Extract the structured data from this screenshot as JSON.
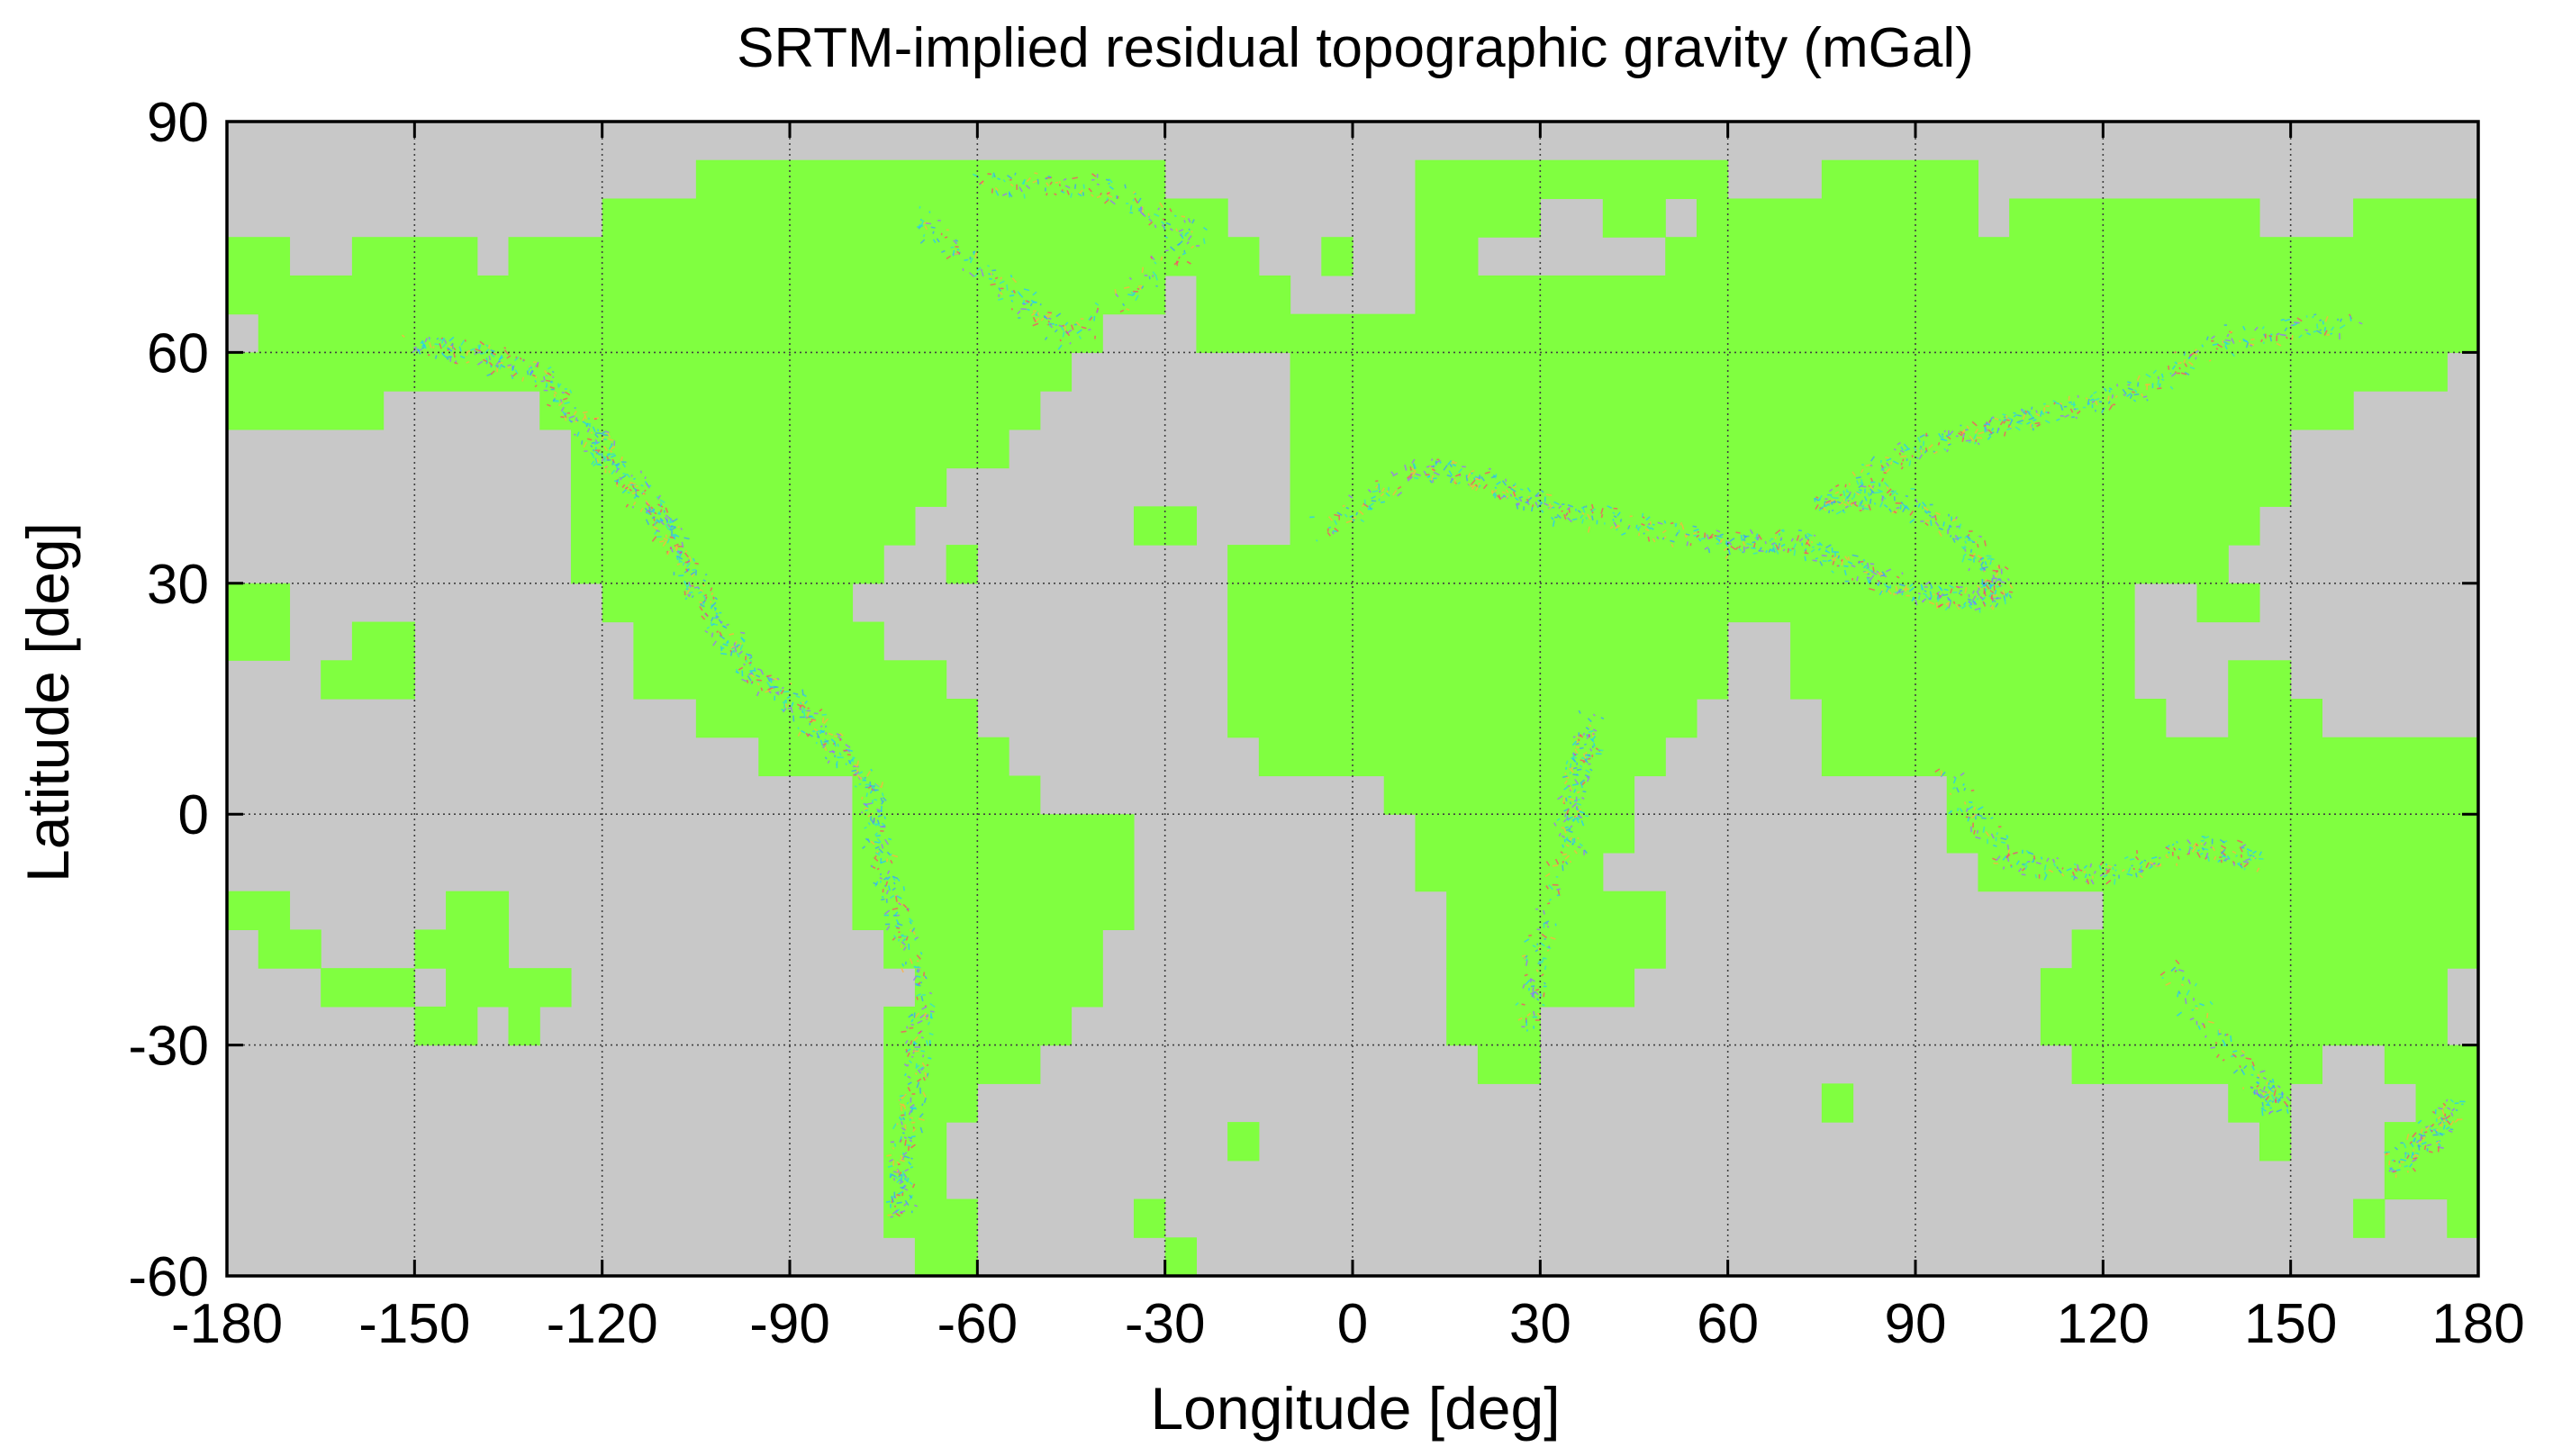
{
  "chart_data": {
    "type": "heatmap",
    "title": "SRTM-implied residual topographic gravity (mGal)",
    "xlabel": "Longitude [deg]",
    "ylabel": "Latitude [deg]",
    "xlim": [
      -180,
      180
    ],
    "ylim": [
      -60,
      90
    ],
    "xticks": [
      -180,
      -150,
      -120,
      -90,
      -60,
      -30,
      0,
      30,
      60,
      90,
      120,
      150,
      180
    ],
    "yticks": [
      -60,
      -30,
      0,
      30,
      60,
      90
    ],
    "xtick_labels": [
      "-180",
      "-150",
      "-120",
      "-90",
      "-60",
      "-30",
      "0",
      "30",
      "60",
      "90",
      "120",
      "150",
      "180"
    ],
    "ytick_labels": [
      "-60",
      "-30",
      "0",
      "30",
      "60",
      "90"
    ],
    "grid": true,
    "tile_size_deg": 5,
    "colors": {
      "no_data": "#c8c8c8",
      "near_zero": "#80ff40",
      "anomaly_palette": [
        "#3aa0ff",
        "#ff4a6a",
        "#22c8ff",
        "#9a6cff",
        "#ffb040",
        "#30e0d0"
      ]
    },
    "land_tiles_by_latitude_band": [
      {
        "lat": [
          85,
          90
        ],
        "lon_ranges": []
      },
      {
        "lat": [
          80,
          85
        ],
        "lon_ranges": [
          [
            -105,
            -30
          ],
          [
            10,
            60
          ],
          [
            75,
            100
          ]
        ]
      },
      {
        "lat": [
          75,
          80
        ],
        "lon_ranges": [
          [
            -120,
            -20
          ],
          [
            10,
            30
          ],
          [
            40,
            50
          ],
          [
            55,
            100
          ],
          [
            105,
            145
          ],
          [
            160,
            180
          ]
        ]
      },
      {
        "lat": [
          70,
          75
        ],
        "lon_ranges": [
          [
            -180,
            -170
          ],
          [
            -160,
            -140
          ],
          [
            -135,
            -15
          ],
          [
            -5,
            0
          ],
          [
            10,
            20
          ],
          [
            50,
            180
          ]
        ]
      },
      {
        "lat": [
          65,
          70
        ],
        "lon_ranges": [
          [
            -180,
            -30
          ],
          [
            -25,
            -10
          ],
          [
            10,
            180
          ]
        ]
      },
      {
        "lat": [
          60,
          65
        ],
        "lon_ranges": [
          [
            -175,
            -40
          ],
          [
            -25,
            180
          ]
        ]
      },
      {
        "lat": [
          55,
          60
        ],
        "lon_ranges": [
          [
            -180,
            -45
          ],
          [
            -10,
            175
          ]
        ]
      },
      {
        "lat": [
          50,
          55
        ],
        "lon_ranges": [
          [
            -180,
            -155
          ],
          [
            -130,
            -50
          ],
          [
            -10,
            160
          ]
        ]
      },
      {
        "lat": [
          45,
          50
        ],
        "lon_ranges": [
          [
            -125,
            -55
          ],
          [
            -10,
            150
          ]
        ]
      },
      {
        "lat": [
          40,
          45
        ],
        "lon_ranges": [
          [
            -125,
            -65
          ],
          [
            -10,
            150
          ]
        ]
      },
      {
        "lat": [
          35,
          40
        ],
        "lon_ranges": [
          [
            -125,
            -70
          ],
          [
            -35,
            -25
          ],
          [
            -10,
            145
          ]
        ]
      },
      {
        "lat": [
          30,
          35
        ],
        "lon_ranges": [
          [
            -125,
            -75
          ],
          [
            -65,
            -60
          ],
          [
            -20,
            140
          ]
        ]
      },
      {
        "lat": [
          25,
          30
        ],
        "lon_ranges": [
          [
            -180,
            -170
          ],
          [
            -120,
            -80
          ],
          [
            -20,
            125
          ],
          [
            135,
            145
          ]
        ]
      },
      {
        "lat": [
          20,
          25
        ],
        "lon_ranges": [
          [
            -180,
            -170
          ],
          [
            -160,
            -150
          ],
          [
            -115,
            -75
          ],
          [
            -20,
            60
          ],
          [
            70,
            125
          ]
        ]
      },
      {
        "lat": [
          15,
          20
        ],
        "lon_ranges": [
          [
            -165,
            -150
          ],
          [
            -115,
            -65
          ],
          [
            -20,
            60
          ],
          [
            70,
            125
          ],
          [
            140,
            150
          ]
        ]
      },
      {
        "lat": [
          10,
          15
        ],
        "lon_ranges": [
          [
            -105,
            -60
          ],
          [
            -20,
            55
          ],
          [
            75,
            130
          ],
          [
            140,
            155
          ]
        ]
      },
      {
        "lat": [
          5,
          10
        ],
        "lon_ranges": [
          [
            -95,
            -55
          ],
          [
            -15,
            50
          ],
          [
            75,
            180
          ]
        ]
      },
      {
        "lat": [
          0,
          5
        ],
        "lon_ranges": [
          [
            -80,
            -50
          ],
          [
            5,
            45
          ],
          [
            95,
            180
          ]
        ]
      },
      {
        "lat": [
          -5,
          0
        ],
        "lon_ranges": [
          [
            -80,
            -35
          ],
          [
            10,
            45
          ],
          [
            95,
            180
          ]
        ]
      },
      {
        "lat": [
          -10,
          -5
        ],
        "lon_ranges": [
          [
            -80,
            -35
          ],
          [
            10,
            40
          ],
          [
            100,
            180
          ]
        ]
      },
      {
        "lat": [
          -15,
          -10
        ],
        "lon_ranges": [
          [
            -180,
            -170
          ],
          [
            -145,
            -135
          ],
          [
            -80,
            -35
          ],
          [
            15,
            50
          ],
          [
            120,
            180
          ]
        ]
      },
      {
        "lat": [
          -20,
          -15
        ],
        "lon_ranges": [
          [
            -175,
            -165
          ],
          [
            -150,
            -135
          ],
          [
            -75,
            -40
          ],
          [
            15,
            50
          ],
          [
            115,
            180
          ]
        ]
      },
      {
        "lat": [
          -25,
          -20
        ],
        "lon_ranges": [
          [
            -165,
            -150
          ],
          [
            -145,
            -125
          ],
          [
            -70,
            -40
          ],
          [
            15,
            45
          ],
          [
            110,
            175
          ]
        ]
      },
      {
        "lat": [
          -30,
          -25
        ],
        "lon_ranges": [
          [
            -150,
            -140
          ],
          [
            -135,
            -130
          ],
          [
            -75,
            -45
          ],
          [
            15,
            30
          ],
          [
            110,
            175
          ]
        ]
      },
      {
        "lat": [
          -35,
          -30
        ],
        "lon_ranges": [
          [
            -75,
            -50
          ],
          [
            20,
            30
          ],
          [
            115,
            155
          ],
          [
            165,
            180
          ]
        ]
      },
      {
        "lat": [
          -40,
          -35
        ],
        "lon_ranges": [
          [
            -75,
            -60
          ],
          [
            75,
            80
          ],
          [
            140,
            150
          ],
          [
            170,
            180
          ]
        ]
      },
      {
        "lat": [
          -45,
          -40
        ],
        "lon_ranges": [
          [
            -75,
            -65
          ],
          [
            -20,
            -15
          ],
          [
            145,
            150
          ],
          [
            165,
            180
          ]
        ]
      },
      {
        "lat": [
          -50,
          -45
        ],
        "lon_ranges": [
          [
            -75,
            -65
          ],
          [
            165,
            180
          ]
        ]
      },
      {
        "lat": [
          -55,
          -50
        ],
        "lon_ranges": [
          [
            -75,
            -60
          ],
          [
            -35,
            -30
          ],
          [
            160,
            165
          ],
          [
            175,
            180
          ]
        ]
      },
      {
        "lat": [
          -60,
          -55
        ],
        "lon_ranges": [
          [
            -70,
            -60
          ],
          [
            -30,
            -25
          ]
        ]
      }
    ]
  }
}
